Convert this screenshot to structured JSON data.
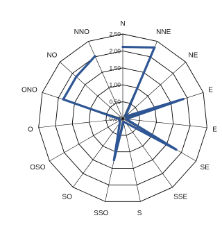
{
  "chart_data": {
    "type": "radar",
    "title": "",
    "categories": [
      "N",
      "NNE",
      "NE",
      "E",
      "E",
      "SE",
      "SSE",
      "S",
      "SSO",
      "SO",
      "OSO",
      "O",
      "ONO",
      "NO",
      "NNO"
    ],
    "rlim": [
      0,
      2.5
    ],
    "r_ticks": [
      "0,00",
      "0,50",
      "1,00",
      "1,50",
      "2,00",
      "2,50"
    ],
    "r_tick_values": [
      0,
      0.5,
      1.0,
      1.5,
      2.0,
      2.5
    ],
    "grid": true,
    "legend": "none",
    "series": [
      {
        "color": "#2e5594",
        "points": [
          {
            "direction": "N",
            "value": 2.12
          },
          {
            "direction": "NNE",
            "value": 2.3
          },
          {
            "direction": "NE",
            "value": 0.1
          },
          {
            "direction": "E",
            "value": 1.88
          },
          {
            "direction": "E",
            "value": 0.1
          },
          {
            "direction": "SE",
            "value": 1.82
          },
          {
            "direction": "SSE",
            "value": 0.15
          },
          {
            "direction": "S",
            "value": 0.1
          },
          {
            "direction": "SSO",
            "value": 1.25
          },
          {
            "direction": "SO",
            "value": 0.15
          },
          {
            "direction": "OSO",
            "value": 0.1
          },
          {
            "direction": "O",
            "value": 0.1
          },
          {
            "direction": "ONO",
            "value": 1.85
          },
          {
            "direction": "NO",
            "value": 1.85
          },
          {
            "direction": "NNO",
            "value": 2.02
          }
        ]
      }
    ]
  }
}
